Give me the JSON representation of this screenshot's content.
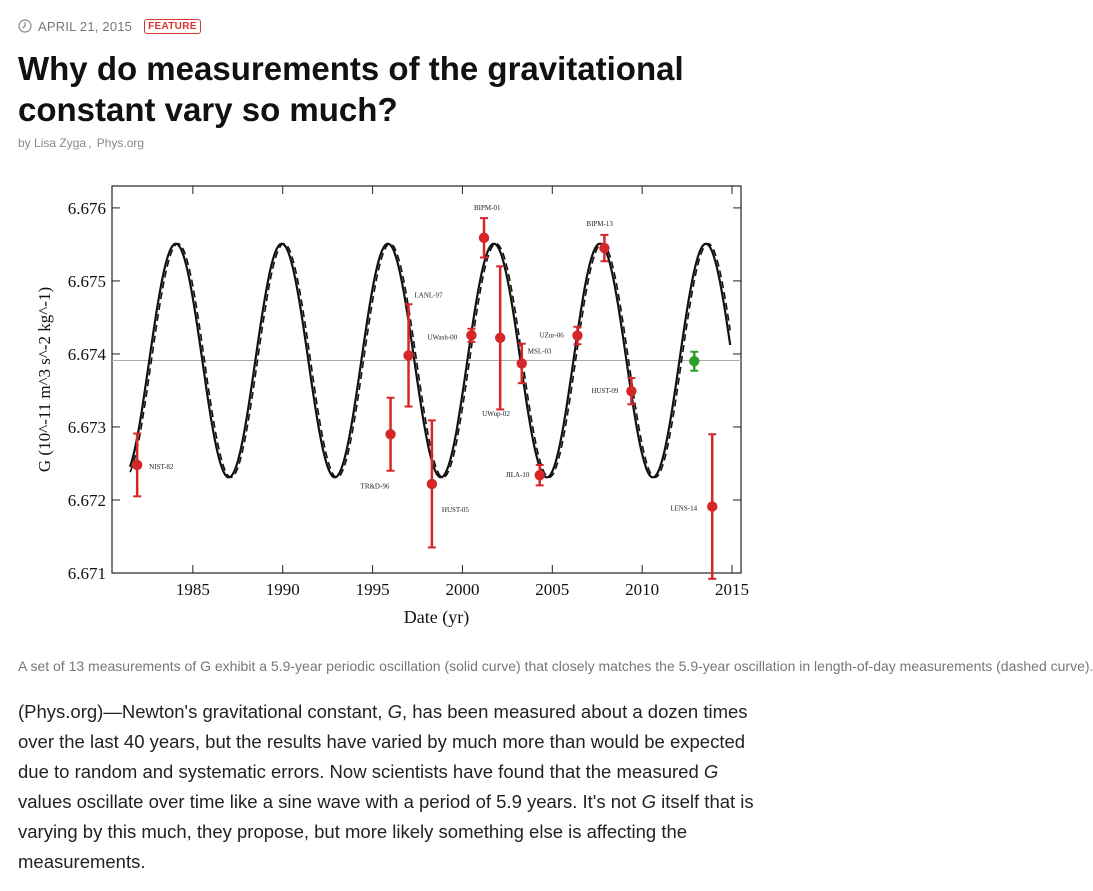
{
  "article": {
    "date": "APRIL 21, 2015",
    "badge": "FEATURE",
    "title": "Why do measurements of the gravitational constant vary so much?",
    "byline_prefix": "by",
    "author": "Lisa Zyga",
    "separator": ",",
    "source": "Phys.org",
    "caption": "A set of 13 measurements of G exhibit a 5.9-year periodic oscillation (solid curve) that closely matches the 5.9-year oscillation in length-of-day measurements (dashed curve).",
    "body": [
      {
        "text": "(Phys.org)—Newton's gravitational constant, "
      },
      {
        "text": "G",
        "italic": true
      },
      {
        "text": ", has been measured about a dozen times over the last 40 years, but the results have varied by much more than would be expected due to random and systematic errors. Now scientists have found that the measured "
      },
      {
        "text": "G",
        "italic": true
      },
      {
        "text": " values oscillate over time like a sine wave with a period of 5.9 years. It's not "
      },
      {
        "text": "G",
        "italic": true
      },
      {
        "text": " itself that is varying by this much, they propose, but more likely something else is affecting the measurements."
      }
    ]
  },
  "icons": {
    "date": "clock-icon"
  },
  "colors": {
    "badge": "#d9352f",
    "points": "#d62728",
    "lens_point": "#2ca02c",
    "curve": "#111111",
    "mean_line": "#aaaaaa"
  },
  "chart_data": {
    "type": "scatter",
    "xlabel": "Date (yr)",
    "ylabel": "G (10^-11 m^3 s^-2 kg^-1)",
    "xlim": [
      1980.5,
      2015.5
    ],
    "ylim": [
      6.671,
      6.6763
    ],
    "xticks": [
      1985,
      1990,
      1995,
      2000,
      2005,
      2010,
      2015
    ],
    "yticks": [
      6.671,
      6.672,
      6.673,
      6.674,
      6.675,
      6.676
    ],
    "mean_line": 6.67391,
    "series": [
      {
        "kind": "measurements",
        "points": [
          {
            "label": "NIST-82",
            "x": 1981.9,
            "y": 6.67248,
            "err": 0.00043
          },
          {
            "label": "TR&D-96",
            "x": 1996.0,
            "y": 6.6729,
            "err": 0.0005
          },
          {
            "label": "LANL-97",
            "x": 1997.0,
            "y": 6.67398,
            "err": 0.0007
          },
          {
            "label": "HUST-05",
            "x": 1998.3,
            "y": 6.67222,
            "err": 0.00087
          },
          {
            "label": "UWash-00",
            "x": 2000.5,
            "y": 6.674255,
            "err": 9e-05
          },
          {
            "label": "BIPM-01",
            "x": 2001.2,
            "y": 6.67559,
            "err": 0.00027
          },
          {
            "label": "UWup-02",
            "x": 2002.1,
            "y": 6.67422,
            "err": 0.00098
          },
          {
            "label": "MSL-03",
            "x": 2003.3,
            "y": 6.67387,
            "err": 0.00027
          },
          {
            "label": "JILA-10",
            "x": 2004.3,
            "y": 6.67234,
            "err": 0.00014
          },
          {
            "label": "UZur-06",
            "x": 2006.4,
            "y": 6.674252,
            "err": 0.00012
          },
          {
            "label": "BIPM-13",
            "x": 2007.9,
            "y": 6.67545,
            "err": 0.00018
          },
          {
            "label": "HUST-09",
            "x": 2009.4,
            "y": 6.67349,
            "err": 0.00018
          },
          {
            "label": "LENS-14",
            "x": 2013.9,
            "y": 6.67191,
            "err": 0.00099
          }
        ]
      },
      {
        "kind": "highlighted",
        "points": [
          {
            "label": "",
            "x": 2012.9,
            "y": 6.6739,
            "err": 0.00013
          }
        ]
      }
    ],
    "model": {
      "mean": 6.67391,
      "amplitude": 0.0016,
      "period": 5.9,
      "peak_year": 1984.05
    },
    "grid": false,
    "legend": "none"
  }
}
